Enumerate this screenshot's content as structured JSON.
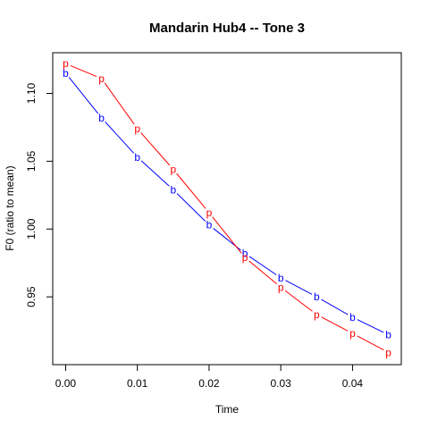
{
  "chart_data": {
    "type": "line",
    "title": "Mandarin Hub4 -- Tone 3",
    "xlabel": "Time",
    "ylabel": "F0 (ratio to mean)",
    "xlim": [
      -0.0018,
      0.0468
    ],
    "ylim": [
      0.9,
      1.13
    ],
    "x_ticks": [
      0,
      0.01,
      0.02,
      0.03,
      0.04
    ],
    "x_tick_labels": [
      "0.00",
      "0.01",
      "0.02",
      "0.03",
      "0.04"
    ],
    "y_ticks": [
      0.95,
      1.0,
      1.05,
      1.1
    ],
    "y_tick_labels": [
      "0.95",
      "1.00",
      "1.05",
      "1.10"
    ],
    "x": [
      0,
      0.005,
      0.01,
      0.015,
      0.02,
      0.025,
      0.03,
      0.035,
      0.04,
      0.045
    ],
    "series": [
      {
        "marker": "b",
        "color": "#0000ff",
        "values": [
          1.115,
          1.082,
          1.053,
          1.029,
          1.003,
          0.982,
          0.964,
          0.95,
          0.935,
          0.922
        ]
      },
      {
        "marker": "p",
        "color": "#ff0000",
        "values": [
          1.122,
          1.111,
          1.074,
          1.044,
          1.012,
          0.979,
          0.957,
          0.937,
          0.923,
          0.909
        ]
      }
    ],
    "grid": false,
    "legend": "none"
  }
}
